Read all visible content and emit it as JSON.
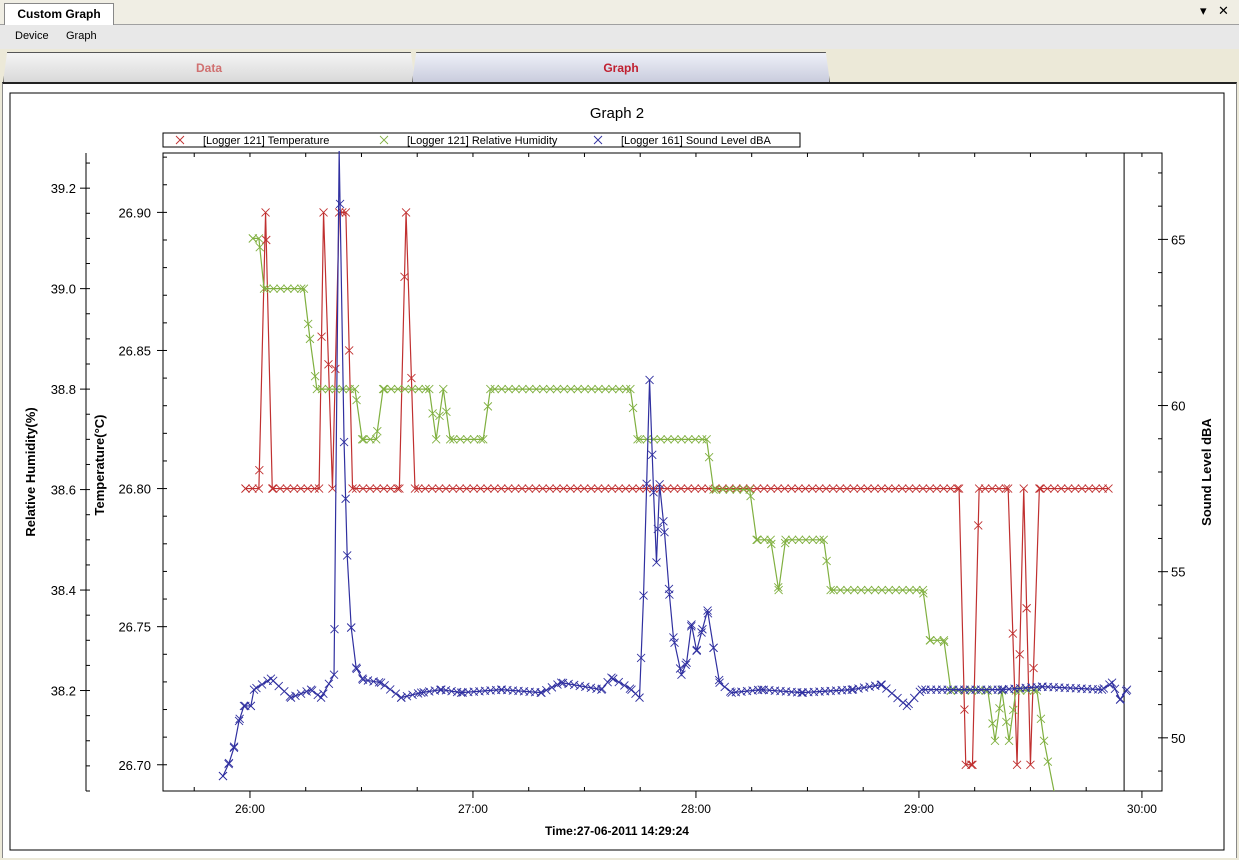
{
  "window": {
    "tab_title": "Custom Graph",
    "pin_icon": "▾",
    "close_icon": "✕"
  },
  "menu": [
    "Device",
    "Graph"
  ],
  "tabs": [
    {
      "label": "Data",
      "active": false
    },
    {
      "label": "Graph",
      "active": true
    }
  ],
  "chart_data": {
    "type": "line",
    "title": "Graph 2",
    "xlabel": "Time:27-06-2011 14:29:24",
    "xlim": [
      25.61,
      30.09
    ],
    "x_ticks": [
      {
        "v": 26,
        "label": "26:00"
      },
      {
        "v": 27,
        "label": "27:00"
      },
      {
        "v": 28,
        "label": "28:00"
      },
      {
        "v": 29,
        "label": "29:00"
      },
      {
        "v": 30,
        "label": "30:00"
      }
    ],
    "cursor_x": 29.92,
    "legend_placement": "top",
    "axes": {
      "humidity": {
        "label": "Relative Humidity(%)",
        "ylim": [
          38.0,
          39.27
        ],
        "ticks": [
          38.2,
          38.4,
          38.6,
          38.8,
          39.0,
          39.2
        ],
        "tick_labels": [
          "38.2",
          "38.4",
          "38.6",
          "38.8",
          "39.0",
          "39.2"
        ],
        "minor": 0.05
      },
      "temperature": {
        "label": "Temperature(°C)",
        "ylim": [
          26.6905,
          26.9215
        ],
        "ticks": [
          26.7,
          26.75,
          26.8,
          26.85,
          26.9
        ],
        "tick_labels": [
          "26.70",
          "26.75",
          "26.80",
          "26.85",
          "26.90"
        ],
        "minor": 0.01
      },
      "sound": {
        "label": "Sound Level dBA",
        "ylim": [
          48.4,
          67.6
        ],
        "ticks": [
          50,
          55,
          60,
          65
        ],
        "tick_labels": [
          "50",
          "55",
          "60",
          "65"
        ],
        "minor": 1
      }
    },
    "series": [
      {
        "name": "[Logger 121] Temperature",
        "axis": "temperature",
        "color": "#c03030",
        "step": 0.031,
        "points": [
          [
            25.98,
            26.8
          ],
          [
            26.04,
            26.8
          ],
          [
            26.07,
            26.9
          ],
          [
            26.1,
            26.8
          ],
          [
            26.31,
            26.8
          ],
          [
            26.33,
            26.9
          ],
          [
            26.37,
            26.8
          ],
          [
            26.4,
            26.9
          ],
          [
            26.43,
            26.9
          ],
          [
            26.46,
            26.8
          ],
          [
            26.67,
            26.8
          ],
          [
            26.7,
            26.9
          ],
          [
            26.74,
            26.8
          ],
          [
            29.18,
            26.8
          ],
          [
            29.21,
            26.7
          ],
          [
            29.24,
            26.7
          ],
          [
            29.27,
            26.8
          ],
          [
            29.4,
            26.8
          ],
          [
            29.44,
            26.7
          ],
          [
            29.47,
            26.8
          ],
          [
            29.5,
            26.7
          ],
          [
            29.54,
            26.8
          ],
          [
            29.85,
            26.8
          ]
        ]
      },
      {
        "name": "[Logger 121] Relative Humidity",
        "axis": "humidity",
        "color": "#80b040",
        "step": 0.031,
        "points": [
          [
            26.013,
            39.1
          ],
          [
            26.04,
            39.1
          ],
          [
            26.063,
            39.0
          ],
          [
            26.242,
            39.0
          ],
          [
            26.269,
            38.9
          ],
          [
            26.3,
            38.8
          ],
          [
            26.471,
            38.8
          ],
          [
            26.503,
            38.7
          ],
          [
            26.566,
            38.7
          ],
          [
            26.597,
            38.8
          ],
          [
            26.804,
            38.8
          ],
          [
            26.835,
            38.7
          ],
          [
            26.867,
            38.8
          ],
          [
            26.898,
            38.7
          ],
          [
            27.046,
            38.7
          ],
          [
            27.078,
            38.8
          ],
          [
            27.706,
            38.8
          ],
          [
            27.738,
            38.7
          ],
          [
            28.048,
            38.7
          ],
          [
            28.079,
            38.6
          ],
          [
            28.241,
            38.6
          ],
          [
            28.272,
            38.5
          ],
          [
            28.335,
            38.5
          ],
          [
            28.371,
            38.4
          ],
          [
            28.402,
            38.5
          ],
          [
            28.573,
            38.5
          ],
          [
            28.604,
            38.4
          ],
          [
            29.018,
            38.4
          ],
          [
            29.049,
            38.3
          ],
          [
            29.112,
            38.3
          ],
          [
            29.143,
            38.2
          ],
          [
            29.309,
            38.2
          ],
          [
            29.341,
            38.1
          ],
          [
            29.372,
            38.2
          ],
          [
            29.404,
            38.1
          ],
          [
            29.435,
            38.2
          ],
          [
            29.529,
            38.2
          ],
          [
            29.561,
            38.1
          ],
          [
            29.61,
            37.98
          ]
        ]
      },
      {
        "name": "[Logger 161] Sound Level dBA",
        "axis": "sound",
        "color": "#3030a0",
        "step": 0.025,
        "points": [
          [
            25.879,
            48.85
          ],
          [
            25.906,
            49.24
          ],
          [
            25.928,
            49.7
          ],
          [
            25.951,
            50.51
          ],
          [
            25.973,
            50.96
          ],
          [
            26.004,
            50.96
          ],
          [
            26.018,
            51.45
          ],
          [
            26.094,
            51.78
          ],
          [
            26.184,
            51.21
          ],
          [
            26.274,
            51.45
          ],
          [
            26.319,
            51.21
          ],
          [
            26.377,
            51.9
          ],
          [
            26.4,
            67.66
          ],
          [
            26.422,
            58.9
          ],
          [
            26.436,
            55.49
          ],
          [
            26.454,
            53.32
          ],
          [
            26.476,
            52.11
          ],
          [
            26.507,
            51.75
          ],
          [
            26.588,
            51.66
          ],
          [
            26.678,
            51.21
          ],
          [
            26.768,
            51.36
          ],
          [
            26.858,
            51.45
          ],
          [
            26.947,
            51.36
          ],
          [
            27.127,
            51.45
          ],
          [
            27.307,
            51.36
          ],
          [
            27.396,
            51.66
          ],
          [
            27.576,
            51.45
          ],
          [
            27.621,
            51.81
          ],
          [
            27.711,
            51.45
          ],
          [
            27.747,
            51.21
          ],
          [
            27.765,
            54.28
          ],
          [
            27.792,
            60.77
          ],
          [
            27.81,
            57.39
          ],
          [
            27.823,
            55.28
          ],
          [
            27.837,
            57.63
          ],
          [
            27.859,
            56.19
          ],
          [
            27.881,
            54.31
          ],
          [
            27.899,
            53.02
          ],
          [
            27.935,
            51.9
          ],
          [
            27.958,
            52.26
          ],
          [
            27.98,
            53.41
          ],
          [
            28.003,
            52.62
          ],
          [
            28.025,
            53.17
          ],
          [
            28.052,
            53.83
          ],
          [
            28.079,
            52.71
          ],
          [
            28.106,
            51.66
          ],
          [
            28.16,
            51.36
          ],
          [
            28.295,
            51.45
          ],
          [
            28.474,
            51.36
          ],
          [
            28.699,
            51.45
          ],
          [
            28.833,
            51.6
          ],
          [
            28.946,
            50.96
          ],
          [
            29.013,
            51.45
          ],
          [
            29.372,
            51.45
          ],
          [
            29.552,
            51.54
          ],
          [
            29.821,
            51.45
          ],
          [
            29.866,
            51.66
          ],
          [
            29.902,
            51.15
          ],
          [
            29.933,
            51.45
          ]
        ]
      }
    ]
  }
}
